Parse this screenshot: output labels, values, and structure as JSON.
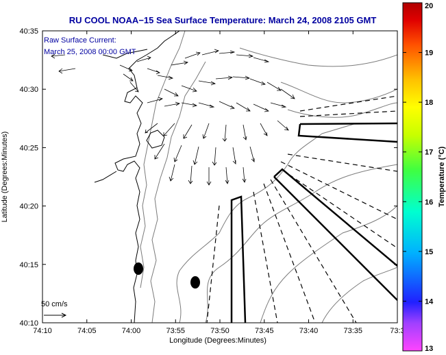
{
  "title": "RU COOL  NOAA−15  Sea Surface Temperature:  March 24, 2008 2105 GMT",
  "current_label": "Raw Surface Current:",
  "current_time": "March 25, 2008 00:00 GMT",
  "scale_label": "50 cm/s",
  "xlabel": "Longitude (Degrees:Minutes)",
  "ylabel": "Latitude (Degrees:Minutes)",
  "x_ticks": [
    "74:10",
    "74:05",
    "74:00",
    "73:55",
    "73:50",
    "73:45",
    "73:40",
    "73:35",
    "73:3"
  ],
  "y_ticks": [
    "40:35",
    "40:30",
    "40:25",
    "40:20",
    "40:15",
    "40:10"
  ],
  "colorbar": {
    "label": "Temperature (°C)",
    "min": 13,
    "max": 20,
    "ticks": [
      "20",
      "19",
      "18",
      "17",
      "16",
      "15",
      "14",
      "13"
    ]
  },
  "colors": {
    "title": "#0000a0",
    "lines": "#000000",
    "contours": "#7a7a7a"
  }
}
